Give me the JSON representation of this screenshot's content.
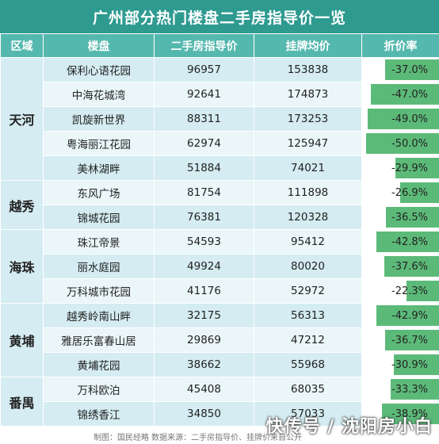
{
  "title": "广州部分热门楼盘二手房指导价一览",
  "headers": {
    "district": "区域",
    "estate": "楼盘",
    "guide": "二手房指导价",
    "listing": "挂牌均价",
    "discount": "折价率"
  },
  "districts": {
    "tianhe": "天河",
    "yuexiu": "越秀",
    "haizhu": "海珠",
    "huangpu": "黄埔",
    "panyu": "番禺"
  },
  "rows": [
    {
      "estate": "保利心语花园",
      "guide": "96957",
      "listing": "153838",
      "discount": "-37.0%",
      "pct": 37.0
    },
    {
      "estate": "中海花城湾",
      "guide": "92641",
      "listing": "174873",
      "discount": "-47.0%",
      "pct": 47.0
    },
    {
      "estate": "凯旋新世界",
      "guide": "88311",
      "listing": "173253",
      "discount": "-49.0%",
      "pct": 49.0
    },
    {
      "estate": "粤海丽江花园",
      "guide": "62974",
      "listing": "125947",
      "discount": "-50.0%",
      "pct": 50.0
    },
    {
      "estate": "美林湖畔",
      "guide": "51884",
      "listing": "74021",
      "discount": "-29.9%",
      "pct": 29.9
    },
    {
      "estate": "东风广场",
      "guide": "81754",
      "listing": "111898",
      "discount": "-26.9%",
      "pct": 26.9
    },
    {
      "estate": "锦城花园",
      "guide": "76381",
      "listing": "120328",
      "discount": "-36.5%",
      "pct": 36.5
    },
    {
      "estate": "珠江帝景",
      "guide": "54593",
      "listing": "95412",
      "discount": "-42.8%",
      "pct": 42.8
    },
    {
      "estate": "丽水庭园",
      "guide": "49924",
      "listing": "80020",
      "discount": "-37.6%",
      "pct": 37.6
    },
    {
      "estate": "万科城市花园",
      "guide": "41176",
      "listing": "52972",
      "discount": "-22.3%",
      "pct": 22.3
    },
    {
      "estate": "越秀岭南山畔",
      "guide": "32175",
      "listing": "56313",
      "discount": "-42.9%",
      "pct": 42.9
    },
    {
      "estate": "雅居乐富春山居",
      "guide": "29869",
      "listing": "47212",
      "discount": "-36.7%",
      "pct": 36.7
    },
    {
      "estate": "黄埔花园",
      "guide": "38662",
      "listing": "55968",
      "discount": "-30.9%",
      "pct": 30.9
    },
    {
      "estate": "万科欧泊",
      "guide": "45408",
      "listing": "68035",
      "discount": "-33.3%",
      "pct": 33.3
    },
    {
      "estate": "锦绣香江",
      "guide": "34850",
      "listing": "57033",
      "discount": "-38.9%",
      "pct": 38.9
    }
  ],
  "footer": "制图：国民经略  数据来源：二手房指导价、挂牌价来自公开",
  "watermark": "快传号 / 沈阳房小白",
  "colors": {
    "title_bg": "#2e9a90",
    "header_bg": "#55b8ae",
    "bar": "#5cba79",
    "row": "#d4ecf2"
  }
}
